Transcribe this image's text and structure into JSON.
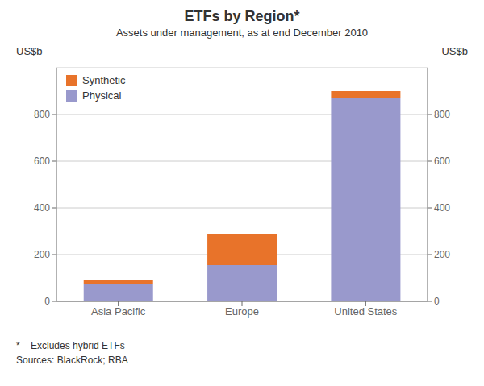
{
  "chart_data": {
    "type": "bar",
    "title": "ETFs by Region*",
    "subtitle": "Assets under management, as at end December 2010",
    "categories": [
      "Asia Pacific",
      "Europe",
      "United States"
    ],
    "series": [
      {
        "name": "Physical",
        "color": "#9999cc",
        "values": [
          75,
          155,
          870
        ]
      },
      {
        "name": "Synthetic",
        "color": "#e8732a",
        "values": [
          15,
          135,
          30
        ]
      }
    ],
    "stacked": true,
    "ylabel": "US$b",
    "y2label": "US$b",
    "ylim": [
      0,
      1000
    ],
    "yticks": [
      0,
      200,
      400,
      600,
      800
    ],
    "y2lim": [
      0,
      1000
    ],
    "y2ticks": [
      0,
      200,
      400,
      600,
      800
    ],
    "grid": true,
    "legend": "upper left",
    "annotations": [
      "*    Excludes hybrid ETFs",
      "Sources: BlackRock; RBA"
    ]
  }
}
